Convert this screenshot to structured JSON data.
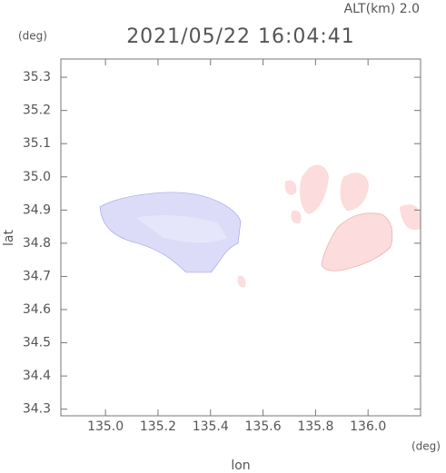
{
  "chart_data": {
    "type": "map",
    "title": "2021/05/22 16:04:41",
    "subtitle": "ALT(km) 2.0",
    "x_label": "lon",
    "y_label": "lat",
    "x_unit": "(deg)",
    "y_unit": "(deg)",
    "xlim": [
      134.83,
      136.2
    ],
    "ylim": [
      34.28,
      35.355
    ],
    "xticks": [
      {
        "value": 135.0,
        "label": "135.0"
      },
      135.2,
      135.4,
      135.6,
      135.8,
      {
        "value": 136.0,
        "label": "136.0"
      }
    ],
    "yticks": [
      35.3,
      35.2,
      35.1,
      {
        "value": 35.0,
        "label": "35.0"
      },
      34.9,
      34.8,
      34.7,
      34.6,
      34.5,
      34.4,
      34.3
    ]
  }
}
